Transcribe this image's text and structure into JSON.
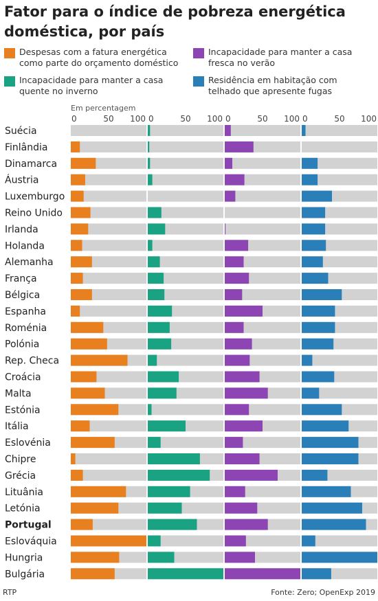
{
  "title": "Fator para o índice de pobreza energética doméstica, por país",
  "legend": [
    {
      "label": "Despesas com a fatura energética como parte do orçamento doméstico",
      "color": "#e8801f"
    },
    {
      "label": "Incapacidade para manter a casa fresca no verão",
      "color": "#8d45b3"
    },
    {
      "label": "Incapacidade para manter a casa quente no inverno",
      "color": "#1aa383"
    },
    {
      "label": "Residência em habitação com telhado que apresente fugas",
      "color": "#2b7fb8"
    }
  ],
  "unit_label": "Em percentagem",
  "footer": {
    "left": "RTP",
    "right": "Fonte: Zero; OpenExp 2019"
  },
  "chart_data": {
    "type": "bar",
    "ylim": [
      0,
      100
    ],
    "tick_labels": [
      "0",
      "50",
      "100"
    ],
    "categories": [
      "Suécia",
      "Finlândia",
      "Dinamarca",
      "Áustria",
      "Luxemburgo",
      "Reino Unido",
      "Irlanda",
      "Holanda",
      "Alemanha",
      "França",
      "Bélgica",
      "Espanha",
      "Roménia",
      "Polónia",
      "Rep. Checa",
      "Croácia",
      "Malta",
      "Estónia",
      "Itália",
      "Eslovénia",
      "Chipre",
      "Grécia",
      "Lituânia",
      "Letónia",
      "Portugal",
      "Eslováquia",
      "Hungria",
      "Bulgária"
    ],
    "highlight": "Portugal",
    "series": [
      {
        "name": "Despesas com a fatura energética como parte do orçamento doméstico",
        "color": "#e8801f",
        "values": [
          0,
          12,
          33,
          19,
          17,
          26,
          23,
          15,
          28,
          16,
          28,
          12,
          43,
          48,
          75,
          34,
          45,
          63,
          25,
          58,
          6,
          16,
          73,
          63,
          29,
          100,
          64,
          58
        ]
      },
      {
        "name": "Incapacidade para manter a casa quente no inverno",
        "color": "#1aa383",
        "values": [
          3,
          2,
          3,
          6,
          0,
          18,
          23,
          6,
          16,
          21,
          22,
          32,
          29,
          31,
          12,
          41,
          38,
          5,
          50,
          17,
          69,
          82,
          56,
          45,
          65,
          17,
          35,
          100
        ]
      },
      {
        "name": "Incapacidade para manter a casa fresca no verão",
        "color": "#8d45b3",
        "values": [
          8,
          38,
          10,
          26,
          14,
          0,
          1,
          31,
          25,
          32,
          23,
          50,
          25,
          36,
          33,
          46,
          57,
          32,
          50,
          24,
          46,
          70,
          27,
          43,
          57,
          28,
          40,
          100
        ]
      },
      {
        "name": "Residência em habitação com telhado que apresente fugas",
        "color": "#2b7fb8",
        "values": [
          5,
          0,
          21,
          21,
          40,
          31,
          31,
          32,
          28,
          35,
          53,
          44,
          44,
          42,
          14,
          43,
          23,
          53,
          62,
          75,
          75,
          34,
          65,
          80,
          85,
          18,
          100,
          39
        ]
      }
    ]
  }
}
